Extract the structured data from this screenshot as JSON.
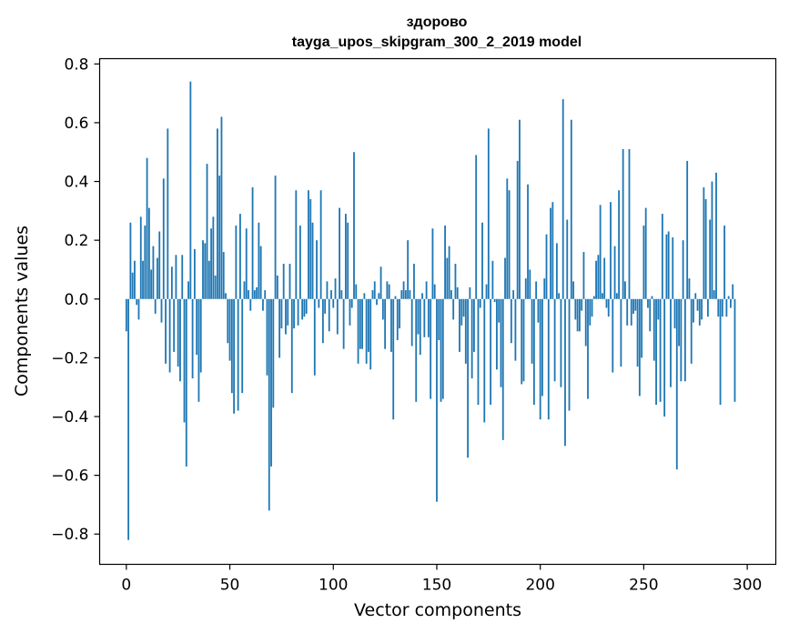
{
  "chart_data": {
    "type": "bar",
    "title_line1": "здорово",
    "title_line2": "tayga_upos_skipgram_300_2_2019 model",
    "xlabel": "Vector components",
    "ylabel": "Components values",
    "xlim": [
      -12.9,
      313.8
    ],
    "ylim": [
      -0.903,
      0.818
    ],
    "bar_color": "#1f77b4",
    "x_ticks": [
      {
        "value": 0,
        "label": "0"
      },
      {
        "value": 50,
        "label": "50"
      },
      {
        "value": 100,
        "label": "100"
      },
      {
        "value": 150,
        "label": "150"
      },
      {
        "value": 200,
        "label": "200"
      },
      {
        "value": 250,
        "label": "250"
      },
      {
        "value": 300,
        "label": "300"
      }
    ],
    "y_ticks": [
      {
        "value": -0.8,
        "label": "−0.8"
      },
      {
        "value": -0.6,
        "label": "−0.6"
      },
      {
        "value": -0.4,
        "label": "−0.4"
      },
      {
        "value": -0.2,
        "label": "−0.2"
      },
      {
        "value": 0.0,
        "label": "0.0"
      },
      {
        "value": 0.2,
        "label": "0.2"
      },
      {
        "value": 0.4,
        "label": "0.4"
      },
      {
        "value": 0.6,
        "label": "0.6"
      },
      {
        "value": 0.8,
        "label": "0.8"
      }
    ],
    "values": [
      -0.11,
      -0.82,
      0.26,
      0.09,
      0.13,
      -0.02,
      -0.07,
      0.28,
      0.13,
      0.25,
      0.48,
      0.31,
      0.1,
      0.18,
      -0.05,
      0.14,
      0.23,
      -0.08,
      0.41,
      -0.22,
      0.58,
      -0.25,
      0.11,
      -0.18,
      0.15,
      -0.23,
      -0.28,
      0.15,
      -0.42,
      -0.57,
      0.06,
      0.74,
      -0.27,
      0.17,
      -0.19,
      -0.35,
      -0.25,
      0.2,
      0.19,
      0.46,
      0.13,
      0.24,
      0.28,
      0.08,
      0.58,
      0.42,
      0.62,
      0.16,
      0.02,
      -0.15,
      -0.21,
      -0.32,
      -0.39,
      0.25,
      -0.38,
      0.29,
      -0.32,
      0.06,
      0.24,
      0.03,
      -0.04,
      0.38,
      0.03,
      0.04,
      0.26,
      0.18,
      -0.04,
      0.03,
      -0.26,
      -0.72,
      -0.57,
      -0.37,
      0.42,
      0.08,
      -0.2,
      -0.1,
      0.12,
      -0.12,
      -0.09,
      0.12,
      -0.32,
      -0.1,
      0.37,
      -0.09,
      0.25,
      -0.07,
      -0.06,
      -0.05,
      0.37,
      0.34,
      0.26,
      -0.26,
      0.2,
      -0.03,
      0.37,
      -0.15,
      -0.05,
      0.06,
      -0.11,
      0.03,
      -0.03,
      0.07,
      -0.12,
      0.31,
      0.03,
      -0.17,
      0.29,
      0.26,
      -0.09,
      -0.03,
      0.5,
      0.05,
      -0.22,
      -0.17,
      -0.17,
      0.02,
      -0.22,
      -0.18,
      -0.24,
      0.03,
      0.06,
      -0.02,
      0.02,
      0.11,
      -0.07,
      -0.17,
      0.06,
      0.05,
      -0.18,
      -0.41,
      0.01,
      -0.14,
      -0.1,
      0.03,
      0.06,
      0.03,
      0.2,
      0.03,
      -0.16,
      0.12,
      -0.35,
      -0.12,
      -0.19,
      0.02,
      -0.13,
      0.06,
      -0.13,
      -0.34,
      0.24,
      0.05,
      -0.69,
      -0.14,
      -0.35,
      -0.34,
      0.25,
      0.14,
      0.18,
      0.03,
      -0.07,
      0.12,
      0.04,
      -0.18,
      -0.09,
      -0.06,
      -0.22,
      -0.54,
      0.04,
      -0.27,
      -0.18,
      0.49,
      -0.36,
      -0.03,
      0.26,
      -0.42,
      0.05,
      0.58,
      -0.36,
      0.13,
      -0.01,
      -0.24,
      -0.08,
      -0.3,
      -0.48,
      0.14,
      0.41,
      0.37,
      -0.15,
      0.03,
      -0.21,
      0.47,
      0.61,
      -0.29,
      -0.28,
      0.07,
      0.39,
      0.1,
      -0.22,
      -0.36,
      0.06,
      -0.08,
      -0.41,
      -0.33,
      0.07,
      0.22,
      -0.41,
      0.31,
      0.33,
      -0.28,
      0.19,
      0.02,
      -0.3,
      0.68,
      -0.5,
      0.27,
      -0.38,
      0.61,
      0.06,
      -0.07,
      -0.11,
      -0.11,
      -0.04,
      0.16,
      -0.16,
      -0.34,
      -0.09,
      -0.06,
      0.01,
      0.13,
      0.15,
      0.32,
      0.02,
      0.14,
      -0.03,
      -0.06,
      0.33,
      -0.25,
      0.18,
      0.02,
      0.37,
      -0.23,
      0.51,
      0.06,
      -0.09,
      0.51,
      -0.09,
      -0.05,
      -0.04,
      -0.23,
      -0.33,
      -0.2,
      0.25,
      0.31,
      -0.03,
      -0.11,
      0.01,
      -0.21,
      -0.36,
      -0.07,
      -0.35,
      0.29,
      -0.4,
      0.22,
      0.23,
      -0.3,
      0.21,
      -0.1,
      -0.58,
      -0.16,
      -0.28,
      0.2,
      -0.28,
      0.47,
      0.07,
      -0.22,
      -0.08,
      0.02,
      -0.04,
      -0.09,
      -0.07,
      0.38,
      0.34,
      -0.06,
      0.27,
      0.4,
      0.03,
      0.43,
      -0.06,
      -0.36,
      -0.06,
      0.25,
      -0.06,
      0.01,
      -0.03,
      0.05,
      -0.35
    ]
  }
}
